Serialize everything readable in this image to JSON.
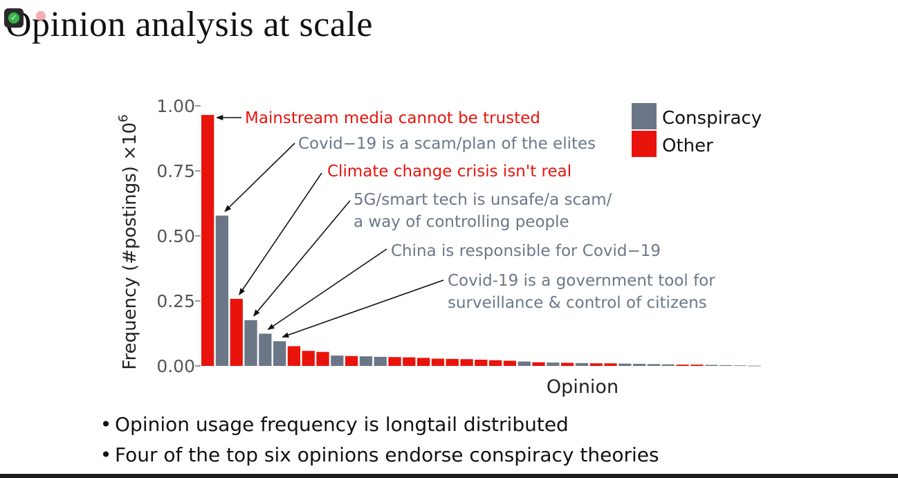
{
  "slide": {
    "title": "Opinion analysis at scale",
    "bullets": [
      "Opinion usage frequency is longtail distributed",
      "Four of the top six opinions endorse conspiracy theories"
    ]
  },
  "overlay": {
    "badge_icon": "shield-check-icon",
    "record_icon": "record-dot-icon"
  },
  "colors": {
    "conspiracy": "#6b7787",
    "other": "#e8140c",
    "axis_text": "#555555"
  },
  "chart_data": {
    "type": "bar",
    "xlabel": "Opinion",
    "ylabel_text": "Frequency (#postings) ×10",
    "ylabel_superscript": "6",
    "ylim": [
      0,
      1.0
    ],
    "yticks": [
      {
        "value": 0.0,
        "label": "0.00"
      },
      {
        "value": 0.25,
        "label": "0.25"
      },
      {
        "value": 0.5,
        "label": "0.50"
      },
      {
        "value": 0.75,
        "label": "0.75"
      },
      {
        "value": 1.0,
        "label": "1.00"
      }
    ],
    "legend": {
      "placement": "top-right",
      "items": [
        {
          "label": "Conspiracy",
          "category": "conspiracy"
        },
        {
          "label": "Other",
          "category": "other"
        }
      ]
    },
    "bars": [
      {
        "value": 0.965,
        "category": "other"
      },
      {
        "value": 0.578,
        "category": "conspiracy"
      },
      {
        "value": 0.258,
        "category": "other"
      },
      {
        "value": 0.176,
        "category": "conspiracy"
      },
      {
        "value": 0.124,
        "category": "conspiracy"
      },
      {
        "value": 0.095,
        "category": "conspiracy"
      },
      {
        "value": 0.076,
        "category": "other"
      },
      {
        "value": 0.058,
        "category": "other"
      },
      {
        "value": 0.054,
        "category": "other"
      },
      {
        "value": 0.04,
        "category": "conspiracy"
      },
      {
        "value": 0.038,
        "category": "other"
      },
      {
        "value": 0.037,
        "category": "conspiracy"
      },
      {
        "value": 0.035,
        "category": "conspiracy"
      },
      {
        "value": 0.034,
        "category": "other"
      },
      {
        "value": 0.033,
        "category": "other"
      },
      {
        "value": 0.031,
        "category": "other"
      },
      {
        "value": 0.028,
        "category": "other"
      },
      {
        "value": 0.027,
        "category": "other"
      },
      {
        "value": 0.026,
        "category": "other"
      },
      {
        "value": 0.024,
        "category": "other"
      },
      {
        "value": 0.022,
        "category": "other"
      },
      {
        "value": 0.02,
        "category": "other"
      },
      {
        "value": 0.017,
        "category": "conspiracy"
      },
      {
        "value": 0.014,
        "category": "other"
      },
      {
        "value": 0.013,
        "category": "conspiracy"
      },
      {
        "value": 0.012,
        "category": "other"
      },
      {
        "value": 0.011,
        "category": "conspiracy"
      },
      {
        "value": 0.01,
        "category": "other"
      },
      {
        "value": 0.01,
        "category": "other"
      },
      {
        "value": 0.009,
        "category": "conspiracy"
      },
      {
        "value": 0.008,
        "category": "conspiracy"
      },
      {
        "value": 0.007,
        "category": "conspiracy"
      },
      {
        "value": 0.006,
        "category": "conspiracy"
      },
      {
        "value": 0.005,
        "category": "other"
      },
      {
        "value": 0.005,
        "category": "other"
      },
      {
        "value": 0.004,
        "category": "conspiracy"
      },
      {
        "value": 0.003,
        "category": "conspiracy"
      },
      {
        "value": 0.002,
        "category": "conspiracy"
      },
      {
        "value": 0.001,
        "category": "conspiracy"
      }
    ],
    "annotations": [
      {
        "bar": 0,
        "category": "other",
        "lines": [
          "Mainstream media cannot be trusted"
        ]
      },
      {
        "bar": 1,
        "category": "conspiracy",
        "lines": [
          "Covid−19 is a scam/plan of the elites"
        ]
      },
      {
        "bar": 2,
        "category": "other",
        "lines": [
          "Climate change crisis isn't real"
        ]
      },
      {
        "bar": 3,
        "category": "conspiracy",
        "lines": [
          "5G/smart tech is unsafe/a scam/",
          "a way of controlling people"
        ]
      },
      {
        "bar": 4,
        "category": "conspiracy",
        "lines": [
          "China is responsible for Covid−19"
        ]
      },
      {
        "bar": 5,
        "category": "conspiracy",
        "lines": [
          "Covid-19 is a government tool for",
          "surveillance & control of citizens"
        ]
      }
    ]
  }
}
